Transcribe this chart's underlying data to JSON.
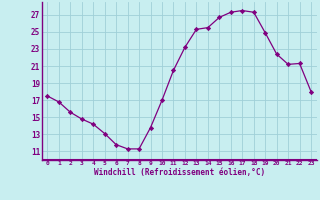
{
  "x": [
    0,
    1,
    2,
    3,
    4,
    5,
    6,
    7,
    8,
    9,
    10,
    11,
    12,
    13,
    14,
    15,
    16,
    17,
    18,
    19,
    20,
    21,
    22,
    23
  ],
  "y": [
    17.5,
    16.8,
    15.6,
    14.8,
    14.2,
    13.1,
    11.8,
    11.3,
    11.3,
    13.8,
    17.0,
    20.5,
    23.2,
    25.3,
    25.5,
    26.7,
    27.3,
    27.5,
    27.3,
    24.9,
    22.4,
    21.2,
    21.3,
    18.0
  ],
  "line_color": "#800080",
  "marker": "D",
  "marker_size": 2.2,
  "bg_color": "#c8eef0",
  "grid_color": "#a0d0d8",
  "xlabel": "Windchill (Refroidissement éolien,°C)",
  "ytick_labels": [
    "11",
    "13",
    "15",
    "17",
    "19",
    "21",
    "23",
    "25",
    "27"
  ],
  "ytick_vals": [
    11,
    13,
    15,
    17,
    19,
    21,
    23,
    25,
    27
  ],
  "xtick_labels": [
    "0",
    "1",
    "2",
    "3",
    "4",
    "5",
    "6",
    "7",
    "8",
    "9",
    "10",
    "11",
    "12",
    "13",
    "14",
    "15",
    "16",
    "17",
    "18",
    "19",
    "20",
    "21",
    "22",
    "23"
  ],
  "ylim": [
    10.0,
    28.5
  ],
  "xlim": [
    -0.5,
    23.5
  ],
  "tick_color": "#800080",
  "label_color": "#800080",
  "spine_color": "#800080",
  "bottom_bar_color": "#800080"
}
